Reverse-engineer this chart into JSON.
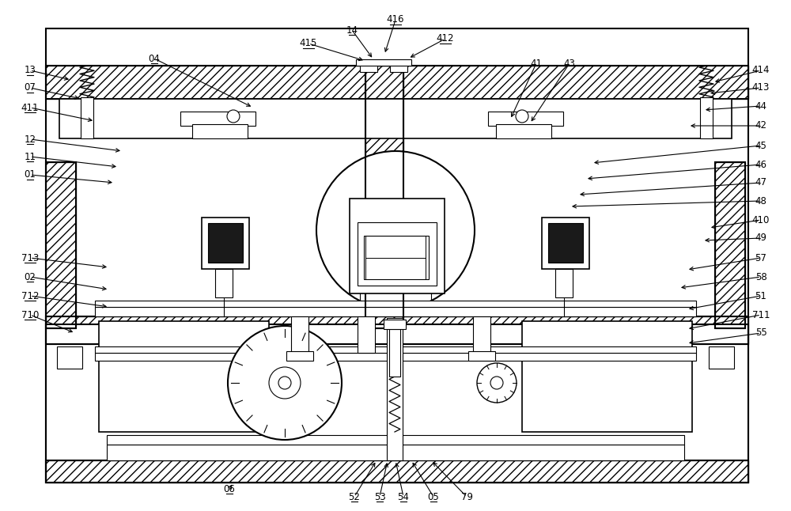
{
  "bg_color": "#ffffff",
  "lc": "#000000",
  "fig_width": 10.0,
  "fig_height": 6.46,
  "dpi": 100
}
